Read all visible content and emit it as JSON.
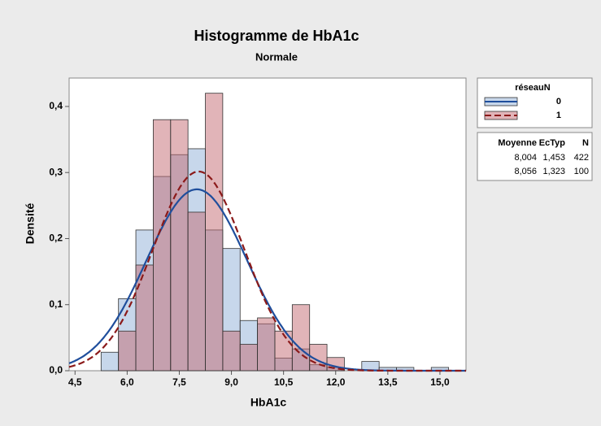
{
  "chart_data": {
    "type": "histogram",
    "title": "Histogramme de HbA1c",
    "subtitle": "Normale",
    "x_label": "HbA1c",
    "y_label": "Densité",
    "legend_title": "réseauN",
    "stats_header": [
      "Moyenne",
      "EcTyp",
      "N"
    ],
    "bins": [
      5.25,
      5.75,
      6.25,
      6.75,
      7.25,
      7.75,
      8.25,
      8.75,
      9.25,
      9.75,
      10.25,
      10.75,
      11.25,
      11.75,
      12.25,
      12.75,
      13.25,
      13.75,
      14.25,
      14.75,
      15.25
    ],
    "series": [
      {
        "name": "0",
        "color": "#8fb0d8",
        "line_color": "#1f4e9c",
        "dashed": false,
        "mean": 8.004,
        "sd": 1.453,
        "n": 422,
        "stat_labels": [
          "8,004",
          "1,453",
          "422"
        ],
        "values": [
          0.028,
          0.109,
          0.213,
          0.294,
          0.327,
          0.336,
          0.213,
          0.185,
          0.076,
          0.071,
          0.019,
          0.033,
          0.009,
          0.005,
          0.0,
          0.014,
          0.005,
          0.005,
          0.0,
          0.005
        ]
      },
      {
        "name": "1",
        "color": "#c46a72",
        "line_color": "#8b1a1a",
        "dashed": true,
        "mean": 8.056,
        "sd": 1.323,
        "n": 100,
        "stat_labels": [
          "8,056",
          "1,323",
          "100"
        ],
        "values": [
          0.0,
          0.06,
          0.16,
          0.38,
          0.38,
          0.24,
          0.42,
          0.06,
          0.04,
          0.08,
          0.06,
          0.1,
          0.04,
          0.02,
          0.0,
          0.0,
          0.0,
          0.0,
          0.0,
          0.0
        ]
      }
    ],
    "xlim": [
      4.33,
      15.75
    ],
    "ylim": [
      0,
      0.443
    ],
    "xticks": [
      {
        "value": 4.5,
        "label": "4,5"
      },
      {
        "value": 6.0,
        "label": "6,0"
      },
      {
        "value": 7.5,
        "label": "7,5"
      },
      {
        "value": 9.0,
        "label": "9,0"
      },
      {
        "value": 10.5,
        "label": "10,5"
      },
      {
        "value": 12.0,
        "label": "12,0"
      },
      {
        "value": 13.5,
        "label": "13,5"
      },
      {
        "value": 15.0,
        "label": "15,0"
      }
    ],
    "yticks": [
      {
        "value": 0,
        "label": "0,0"
      },
      {
        "value": 0.1,
        "label": "0,1"
      },
      {
        "value": 0.2,
        "label": "0,2"
      },
      {
        "value": 0.3,
        "label": "0,3"
      },
      {
        "value": 0.4,
        "label": "0,4"
      }
    ]
  }
}
